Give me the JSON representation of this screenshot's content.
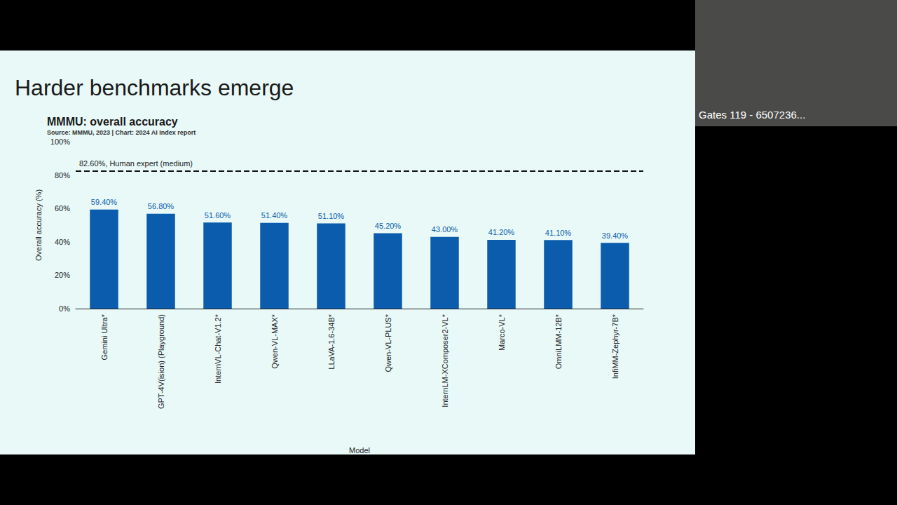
{
  "slide_title": "Harder benchmarks emerge",
  "video_caption": "Gates 119 - 6507236...",
  "chart_data": {
    "type": "bar",
    "title": "MMMU: overall accuracy",
    "subtitle": "Source: MMMU, 2023 | Chart: 2024 AI Index report",
    "x_label": "Model",
    "y_label": "Overall accuracy (%)",
    "categories": [
      "Gemini Ultra*",
      "GPT-4V(ision) (Playground)",
      "InternVL-Chat-V1.2*",
      "Qwen-VL-MAX*",
      "LLaVA-1.6-34B*",
      "Qwen-VL-PLUS*",
      "InternLM-XComposer2-VL*",
      "Marco-VL*",
      "OmniLMM-12B*",
      "InfiMM-Zephyr-7B*"
    ],
    "values": [
      59.4,
      56.8,
      51.6,
      51.4,
      51.1,
      45.2,
      43.0,
      41.2,
      41.1,
      39.4
    ],
    "value_labels": [
      "59.40%",
      "56.80%",
      "51.60%",
      "51.40%",
      "51.10%",
      "45.20%",
      "43.00%",
      "41.20%",
      "41.10%",
      "39.40%"
    ],
    "color": "#0b5cad",
    "ylim": [
      0,
      100
    ],
    "yticks": [
      {
        "value": 0,
        "label": "0%"
      },
      {
        "value": 20,
        "label": "20%"
      },
      {
        "value": 40,
        "label": "40%"
      },
      {
        "value": 60,
        "label": "60%"
      },
      {
        "value": 80,
        "label": "80%"
      },
      {
        "value": 100,
        "label": "100%"
      }
    ],
    "reference_line": {
      "value": 82.6,
      "label": "82.60%, Human expert (medium)"
    },
    "grid": false,
    "data_labels": true
  }
}
